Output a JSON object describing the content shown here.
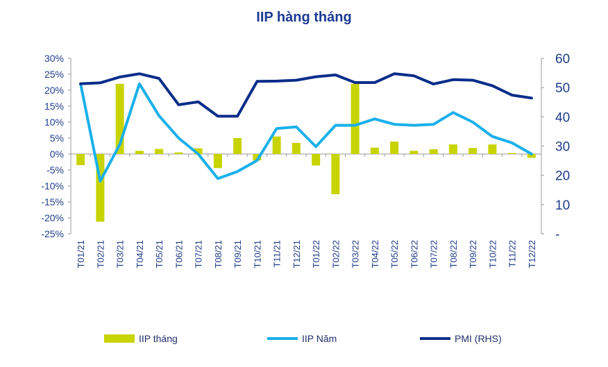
{
  "chart_data": {
    "type": "bar",
    "title": "IIP hàng tháng",
    "categories": [
      "T01/21",
      "T02/21",
      "T03/21",
      "T04/21",
      "T05/21",
      "T06/21",
      "T07/21",
      "T08/21",
      "T09/21",
      "T10/21",
      "T11/21",
      "T12/21",
      "T01/22",
      "T02/22",
      "T03/22",
      "T04/22",
      "T05/22",
      "T06/22",
      "T07/22",
      "T08/22",
      "T09/22",
      "T10/22",
      "T11/22",
      "T12/22"
    ],
    "series": [
      {
        "name": "IIP tháng",
        "type": "bar",
        "axis": "left",
        "color": "#c8d400",
        "values": [
          -3.5,
          -21.2,
          22.0,
          1.0,
          1.6,
          0.5,
          1.8,
          -4.4,
          5.0,
          -2.0,
          5.5,
          3.5,
          -3.6,
          -12.6,
          22.0,
          2.0,
          3.9,
          1.0,
          1.5,
          3.0,
          1.9,
          3.0,
          0.3,
          -1.2
        ]
      },
      {
        "name": "IIP Năm",
        "type": "line",
        "axis": "left",
        "color": "#1ab0ea",
        "values": [
          22.0,
          -8.5,
          3.0,
          22.0,
          12.0,
          5.0,
          0.0,
          -7.7,
          -5.5,
          -2.0,
          8.0,
          8.5,
          2.3,
          9.0,
          9.0,
          11.0,
          9.3,
          9.0,
          9.3,
          13.0,
          10.0,
          5.5,
          3.5,
          0.0
        ]
      },
      {
        "name": "PMI  (RHS)",
        "type": "line",
        "axis": "right",
        "color": "#0a2d8a",
        "values": [
          51.3,
          51.6,
          53.6,
          54.7,
          53.1,
          44.1,
          45.1,
          40.2,
          40.2,
          52.1,
          52.2,
          52.5,
          53.7,
          54.3,
          51.7,
          51.7,
          54.7,
          54.0,
          51.2,
          52.7,
          52.5,
          50.6,
          47.4,
          46.4
        ]
      }
    ],
    "y_left": {
      "min": -25,
      "max": 30,
      "step": 5,
      "tick_labels": [
        "-25%",
        "-20%",
        "-15%",
        "-10%",
        "-5%",
        "0%",
        "5%",
        "10%",
        "15%",
        "20%",
        "25%",
        "30%"
      ]
    },
    "y_right": {
      "min": 0,
      "max": 60,
      "step": 10,
      "tick_labels": [
        "-",
        "10",
        "20",
        "30",
        "40",
        "50",
        "60"
      ]
    },
    "grid": false,
    "legend": "bottom"
  }
}
